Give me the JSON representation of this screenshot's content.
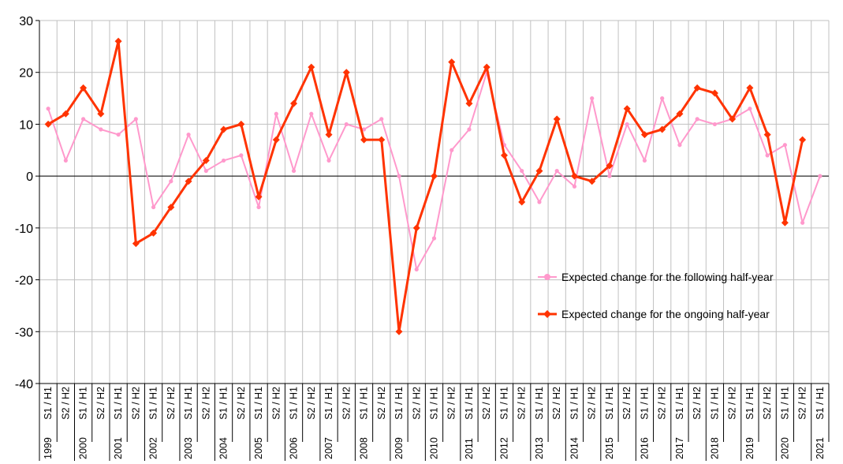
{
  "chart_data": {
    "type": "line",
    "categories": [
      "S1 / H1",
      "S2 / H2",
      "S1 / H1",
      "S2 / H2",
      "S1 / H1",
      "S2 / H2",
      "S1 / H1",
      "S2 / H2",
      "S1 / H1",
      "S2 / H2",
      "S1 / H1",
      "S2 / H2",
      "S1 / H1",
      "S2 / H2",
      "S1 / H1",
      "S2 / H2",
      "S1 / H1",
      "S2 / H2",
      "S1 / H1",
      "S2 / H2",
      "S1 / H1",
      "S2 / H2",
      "S1 / H1",
      "S2 / H2",
      "S1 / H1",
      "S2 / H2",
      "S1 / H1",
      "S2 / H2",
      "S1 / H1",
      "S2 / H2",
      "S1 / H1",
      "S2 / H2",
      "S1 / H1",
      "S2 / H2",
      "S1 / H1",
      "S2 / H2",
      "S1 / H1",
      "S2 / H2",
      "S1 / H1",
      "S2 / H2",
      "S1 / H1",
      "S2 / H2",
      "S1 / H1",
      "S2 / H2",
      "S1 / H1"
    ],
    "years": [
      {
        "label": "1999",
        "index": 0
      },
      {
        "label": "2000",
        "index": 2
      },
      {
        "label": "2001",
        "index": 4
      },
      {
        "label": "2002",
        "index": 6
      },
      {
        "label": "2003",
        "index": 8
      },
      {
        "label": "2004",
        "index": 10
      },
      {
        "label": "2005",
        "index": 12
      },
      {
        "label": "2006",
        "index": 14
      },
      {
        "label": "2007",
        "index": 16
      },
      {
        "label": "2008",
        "index": 18
      },
      {
        "label": "2009",
        "index": 20
      },
      {
        "label": "2010",
        "index": 22
      },
      {
        "label": "2011",
        "index": 24
      },
      {
        "label": "2012",
        "index": 26
      },
      {
        "label": "2013",
        "index": 28
      },
      {
        "label": "2014",
        "index": 30
      },
      {
        "label": "2015",
        "index": 32
      },
      {
        "label": "2016",
        "index": 34
      },
      {
        "label": "2017",
        "index": 36
      },
      {
        "label": "2018",
        "index": 38
      },
      {
        "label": "2019",
        "index": 40
      },
      {
        "label": "2020",
        "index": 42
      },
      {
        "label": "2021",
        "index": 44
      }
    ],
    "series": [
      {
        "name": "Expected change for the following half-year",
        "color": "#ff99cc",
        "marker": "circle",
        "values": [
          13,
          3,
          11,
          9,
          8,
          11,
          -6,
          -1,
          8,
          1,
          3,
          4,
          -6,
          12,
          1,
          12,
          3,
          10,
          9,
          11,
          0,
          -18,
          -12,
          5,
          9,
          20,
          6,
          1,
          -5,
          1,
          -2,
          15,
          0,
          10,
          3,
          15,
          6,
          11,
          10,
          11,
          13,
          4,
          6,
          -9,
          0
        ]
      },
      {
        "name": "Expected change for the ongoing half-year",
        "color": "#ff3300",
        "marker": "diamond",
        "values": [
          10,
          12,
          17,
          12,
          26,
          -13,
          -11,
          -6,
          -1,
          3,
          9,
          10,
          -4,
          7,
          14,
          21,
          8,
          20,
          7,
          7,
          -30,
          -10,
          0,
          22,
          14,
          21,
          4,
          -5,
          1,
          11,
          0,
          -1,
          2,
          13,
          8,
          9,
          12,
          17,
          16,
          11,
          17,
          8,
          -9,
          7,
          null
        ]
      }
    ],
    "ylim": [
      -40,
      30
    ],
    "yticks": [
      30,
      20,
      10,
      0,
      -10,
      -20,
      -30,
      -40
    ],
    "grid": true,
    "legend_position": "right"
  }
}
